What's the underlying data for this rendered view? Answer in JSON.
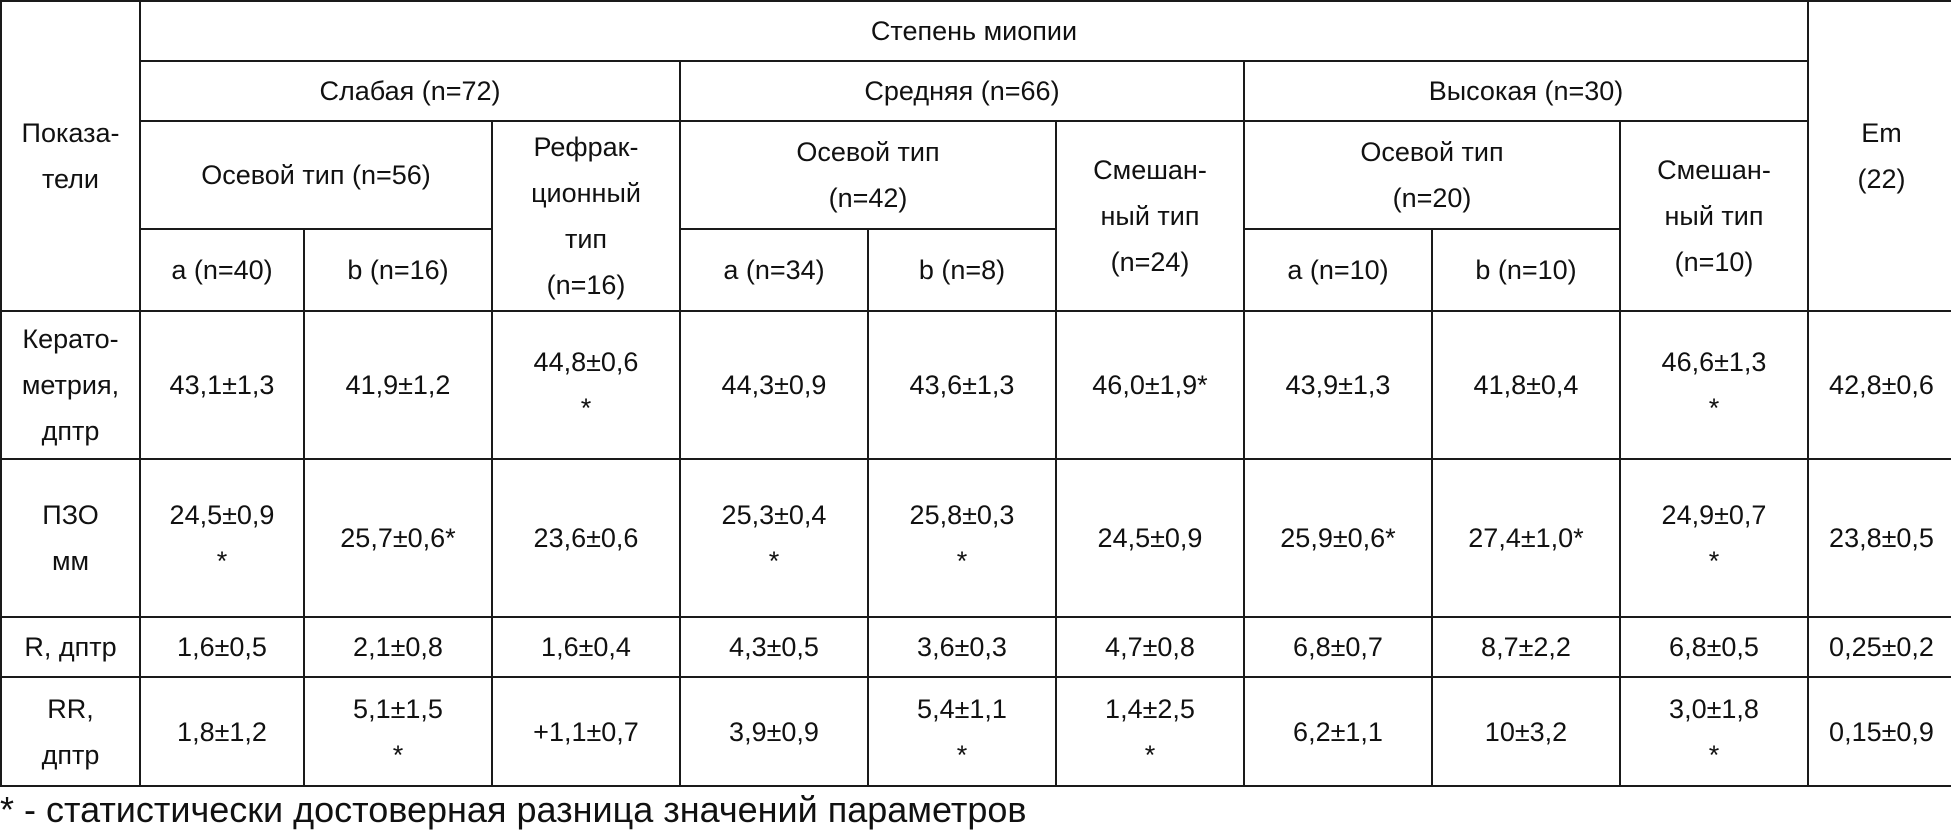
{
  "table": {
    "header": {
      "indicators": "Показа-\nтели",
      "degree": "Степень миопии",
      "weak": "Слабая (n=72)",
      "medium": "Средняя (n=66)",
      "high": "Высокая (n=30)",
      "em": "Em\n(22)",
      "weak_axial": "Осевой тип (n=56)",
      "weak_refractive": "Рефрак-\nционный\nтип\n(n=16)",
      "medium_axial": "Осевой тип\n(n=42)",
      "medium_mixed": "Смешан-\nный тип\n(n=24)",
      "high_axial": "Осевой тип\n(n=20)",
      "high_mixed": "Смешан-\nный тип\n(n=10)",
      "sub": [
        "a (n=40)",
        "b (n=16)",
        "a (n=34)",
        "b (n=8)",
        "a (n=10)",
        "b (n=10)"
      ]
    },
    "rows": [
      {
        "label": "Керато-\nметрия,\nдптр",
        "cells": [
          "43,1±1,3",
          "41,9±1,2",
          "44,8±0,6\n*",
          "44,3±0,9",
          "43,6±1,3",
          "46,0±1,9*",
          "43,9±1,3",
          "41,8±0,4",
          "46,6±1,3\n*",
          "42,8±0,6"
        ]
      },
      {
        "label": "ПЗО\nмм",
        "cells": [
          "24,5±0,9\n*",
          "25,7±0,6*",
          "23,6±0,6",
          "25,3±0,4\n*",
          "25,8±0,3\n*",
          "24,5±0,9",
          "25,9±0,6*",
          "27,4±1,0*",
          "24,9±0,7\n*",
          "23,8±0,5"
        ]
      },
      {
        "label": "R, дптр",
        "cells": [
          "1,6±0,5",
          "2,1±0,8",
          "1,6±0,4",
          "4,3±0,5",
          "3,6±0,3",
          "4,7±0,8",
          "6,8±0,7",
          "8,7±2,2",
          "6,8±0,5",
          "0,25±0,2"
        ]
      },
      {
        "label": "RR,\nдптр",
        "cells": [
          "1,8±1,2",
          "5,1±1,5\n*",
          "+1,1±0,7",
          "3,9±0,9",
          "5,4±1,1\n*",
          "1,4±2,5\n*",
          "6,2±1,1",
          "10±3,2",
          "3,0±1,8\n*",
          "0,15±0,9"
        ]
      }
    ]
  },
  "footnote": "* - статистически достоверная разница значений параметров"
}
